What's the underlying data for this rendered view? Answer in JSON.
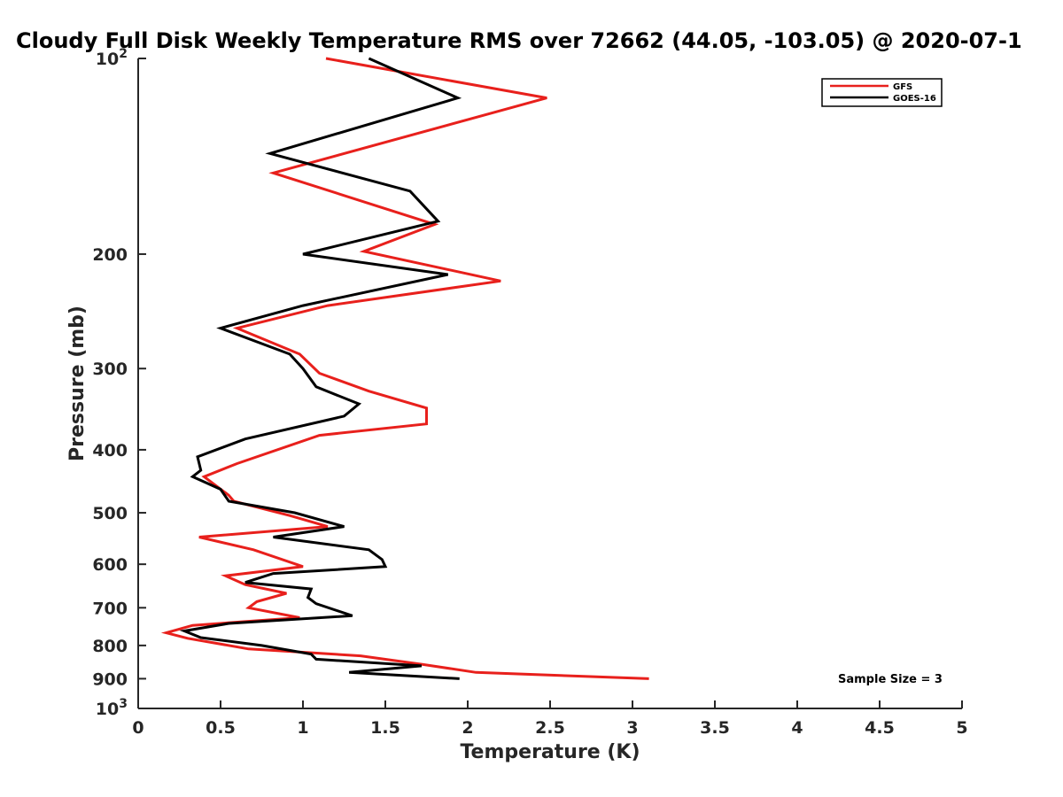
{
  "chart_data": {
    "type": "line",
    "title": "Cloudy Full Disk Weekly Temperature RMS over 72662 (44.05, -103.05) @ 2020-07-1",
    "xlabel": "Temperature (K)",
    "ylabel": "Pressure (mb)",
    "xlim": [
      0,
      5
    ],
    "ylim": [
      100,
      1000
    ],
    "yscale": "log",
    "y_reversed": true,
    "xticks": [
      "0",
      "0.5",
      "1",
      "1.5",
      "2",
      "2.5",
      "3",
      "3.5",
      "4",
      "4.5",
      "5"
    ],
    "yticks": [
      {
        "value": 100,
        "base": "10",
        "exp": "2"
      },
      {
        "value": 200,
        "label": "200"
      },
      {
        "value": 300,
        "label": "300"
      },
      {
        "value": 400,
        "label": "400"
      },
      {
        "value": 500,
        "label": "500"
      },
      {
        "value": 600,
        "label": "600"
      },
      {
        "value": 700,
        "label": "700"
      },
      {
        "value": 800,
        "label": "800"
      },
      {
        "value": 900,
        "label": "900"
      },
      {
        "value": 1000,
        "base": "10",
        "exp": "3"
      }
    ],
    "legend_position": "top-right",
    "annotation": "Sample Size = 3",
    "series": [
      {
        "name": "GFS",
        "color": "#e8201c",
        "points": [
          [
            1.14,
            100
          ],
          [
            2.48,
            115
          ],
          [
            0.82,
            150
          ],
          [
            1.8,
            180
          ],
          [
            1.37,
            198
          ],
          [
            2.2,
            220
          ],
          [
            1.15,
            240
          ],
          [
            0.6,
            260
          ],
          [
            0.98,
            285
          ],
          [
            1.1,
            305
          ],
          [
            1.4,
            325
          ],
          [
            1.75,
            345
          ],
          [
            1.75,
            365
          ],
          [
            1.1,
            380
          ],
          [
            0.6,
            420
          ],
          [
            0.4,
            440
          ],
          [
            0.55,
            470
          ],
          [
            0.58,
            480
          ],
          [
            0.92,
            505
          ],
          [
            1.15,
            525
          ],
          [
            0.37,
            545
          ],
          [
            0.7,
            570
          ],
          [
            1.0,
            605
          ],
          [
            0.53,
            625
          ],
          [
            0.65,
            645
          ],
          [
            0.9,
            665
          ],
          [
            0.72,
            685
          ],
          [
            0.67,
            700
          ],
          [
            0.98,
            725
          ],
          [
            0.33,
            745
          ],
          [
            0.17,
            765
          ],
          [
            0.3,
            780
          ],
          [
            0.67,
            810
          ],
          [
            1.35,
            830
          ],
          [
            1.72,
            855
          ],
          [
            2.05,
            880
          ],
          [
            3.1,
            900
          ]
        ]
      },
      {
        "name": "GOES-16",
        "color": "#000000",
        "points": [
          [
            1.4,
            100
          ],
          [
            1.94,
            115
          ],
          [
            0.8,
            140
          ],
          [
            1.65,
            160
          ],
          [
            1.82,
            178
          ],
          [
            1.0,
            200
          ],
          [
            1.88,
            215
          ],
          [
            1.0,
            240
          ],
          [
            0.5,
            260
          ],
          [
            0.92,
            285
          ],
          [
            1.0,
            300
          ],
          [
            1.08,
            320
          ],
          [
            1.34,
            340
          ],
          [
            1.25,
            355
          ],
          [
            0.65,
            385
          ],
          [
            0.36,
            410
          ],
          [
            0.38,
            430
          ],
          [
            0.33,
            440
          ],
          [
            0.5,
            460
          ],
          [
            0.55,
            480
          ],
          [
            0.95,
            500
          ],
          [
            1.25,
            525
          ],
          [
            0.82,
            545
          ],
          [
            1.4,
            570
          ],
          [
            1.48,
            590
          ],
          [
            1.5,
            605
          ],
          [
            0.82,
            620
          ],
          [
            0.65,
            640
          ],
          [
            1.05,
            655
          ],
          [
            1.03,
            675
          ],
          [
            1.08,
            690
          ],
          [
            1.3,
            720
          ],
          [
            0.55,
            740
          ],
          [
            0.28,
            760
          ],
          [
            0.38,
            778
          ],
          [
            0.75,
            800
          ],
          [
            1.05,
            825
          ],
          [
            1.08,
            840
          ],
          [
            1.72,
            860
          ],
          [
            1.28,
            880
          ],
          [
            1.95,
            900
          ]
        ]
      }
    ]
  }
}
